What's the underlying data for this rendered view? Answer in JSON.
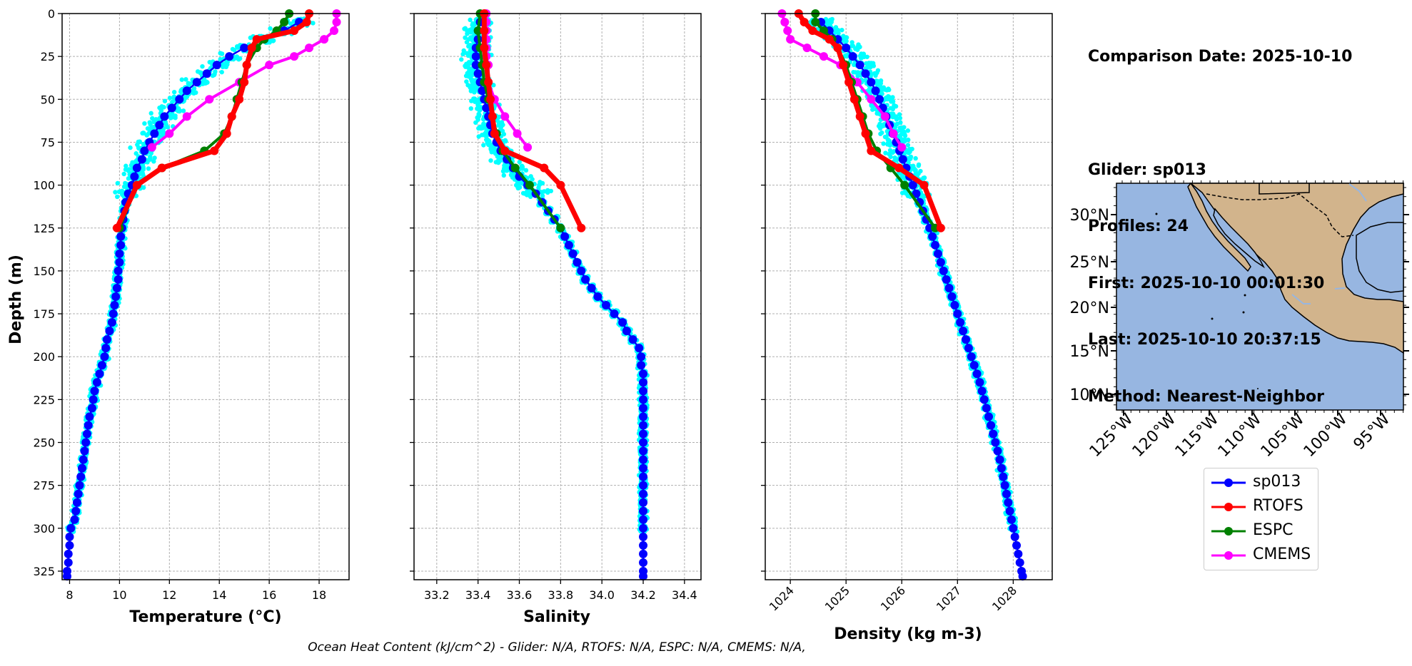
{
  "info": {
    "comparison_date": "Comparison Date: 2025-10-10",
    "glider": "Glider: sp013",
    "profiles": "Profiles: 24",
    "first": "First: 2025-10-10 00:01:30",
    "last": "Last: 2025-10-10 20:37:15",
    "method": "Method: Nearest-Neighbor"
  },
  "footer": "Ocean Heat Content (kJ/cm^2) - Glider: N/A,  RTOFS: N/A,  ESPC: N/A,  CMEMS: N/A,",
  "colors": {
    "sp013": "#0000ff",
    "RTOFS": "#ff0000",
    "ESPC": "#008000",
    "CMEMS": "#ff00ff",
    "profiles": "#00ffff",
    "ocean": "#97b6e1",
    "land": "#d2b48c"
  },
  "legend": [
    {
      "name": "sp013",
      "color": "#0000ff"
    },
    {
      "name": "RTOFS",
      "color": "#ff0000"
    },
    {
      "name": "ESPC",
      "color": "#008000"
    },
    {
      "name": "CMEMS",
      "color": "#ff00ff"
    }
  ],
  "map": {
    "lat_labels": [
      "30°N",
      "25°N",
      "20°N",
      "15°N",
      "10°N"
    ],
    "lon_labels": [
      "125°W",
      "120°W",
      "115°W",
      "110°W",
      "105°W",
      "100°W",
      "95°W"
    ]
  },
  "chart_data": [
    {
      "type": "line",
      "xlabel": "Temperature (°C)",
      "ylabel": "Depth (m)",
      "xlim": [
        7.7,
        19.2
      ],
      "ylim": [
        330,
        0
      ],
      "xticks": [
        8,
        10,
        12,
        14,
        16,
        18
      ],
      "xtick_labels": [
        "8",
        "10",
        "12",
        "14",
        "16",
        "18"
      ],
      "yticks": [
        0,
        25,
        50,
        75,
        100,
        125,
        150,
        175,
        200,
        225,
        250,
        275,
        300,
        325
      ],
      "grid": true,
      "series": [
        {
          "name": "sp013",
          "depth": [
            5,
            10,
            15,
            20,
            25,
            30,
            35,
            40,
            45,
            50,
            55,
            60,
            65,
            70,
            75,
            80,
            85,
            90,
            95,
            100,
            105,
            110,
            115,
            120,
            125,
            130,
            135,
            140,
            145,
            150,
            155,
            160,
            165,
            170,
            175,
            180,
            185,
            190,
            195,
            200,
            205,
            210,
            215,
            220,
            225,
            230,
            235,
            240,
            245,
            250,
            255,
            260,
            265,
            270,
            275,
            280,
            285,
            290,
            295,
            300,
            305,
            310,
            315,
            320,
            325,
            328
          ],
          "values": [
            17.2,
            16.6,
            15.8,
            15.0,
            14.4,
            13.9,
            13.5,
            13.1,
            12.7,
            12.4,
            12.1,
            11.8,
            11.6,
            11.4,
            11.2,
            11.0,
            10.9,
            10.7,
            10.6,
            10.5,
            10.35,
            10.25,
            10.2,
            10.15,
            10.1,
            10.05,
            10.05,
            10.0,
            10.0,
            9.95,
            9.95,
            9.9,
            9.85,
            9.8,
            9.75,
            9.7,
            9.6,
            9.5,
            9.45,
            9.4,
            9.3,
            9.2,
            9.1,
            9.0,
            8.95,
            8.9,
            8.8,
            8.75,
            8.7,
            8.65,
            8.6,
            8.55,
            8.5,
            8.45,
            8.4,
            8.35,
            8.3,
            8.25,
            8.2,
            8.05,
            8.0,
            8.0,
            7.95,
            7.95,
            7.9,
            7.9
          ]
        },
        {
          "name": "RTOFS",
          "depth": [
            0,
            5,
            10,
            15,
            20,
            30,
            40,
            50,
            60,
            70,
            80,
            90,
            100,
            125
          ],
          "values": [
            17.6,
            17.5,
            17.0,
            15.5,
            15.3,
            15.1,
            15.0,
            14.8,
            14.5,
            14.3,
            13.8,
            11.7,
            10.7,
            9.9
          ]
        },
        {
          "name": "ESPC",
          "depth": [
            0,
            5,
            10,
            15,
            20,
            30,
            40,
            50,
            60,
            70,
            80,
            90,
            100,
            125
          ],
          "values": [
            16.8,
            16.6,
            16.3,
            15.8,
            15.5,
            15.1,
            14.9,
            14.7,
            14.5,
            14.2,
            13.4,
            11.7,
            10.7,
            10.0
          ]
        },
        {
          "name": "CMEMS",
          "depth": [
            0,
            5,
            10,
            15,
            20,
            25,
            30,
            40,
            50,
            60,
            70,
            78
          ],
          "values": [
            18.7,
            18.7,
            18.6,
            18.2,
            17.6,
            17.0,
            16.0,
            14.8,
            13.6,
            12.7,
            12.0,
            11.3
          ]
        }
      ]
    },
    {
      "type": "line",
      "xlabel": "Salinity",
      "xlim": [
        33.09,
        34.48
      ],
      "ylim": [
        330,
        0
      ],
      "xticks": [
        33.2,
        33.4,
        33.6,
        33.8,
        34.0,
        34.2,
        34.4
      ],
      "xtick_labels": [
        "33.2",
        "33.4",
        "33.6",
        "33.8",
        "34.0",
        "34.2",
        "34.4"
      ],
      "grid": true,
      "series": [
        {
          "name": "sp013",
          "depth": [
            5,
            10,
            15,
            20,
            25,
            30,
            35,
            40,
            45,
            50,
            55,
            60,
            65,
            70,
            75,
            80,
            85,
            90,
            95,
            100,
            105,
            110,
            115,
            120,
            125,
            130,
            135,
            140,
            145,
            150,
            155,
            160,
            165,
            170,
            175,
            180,
            185,
            190,
            195,
            200,
            205,
            210,
            215,
            220,
            225,
            230,
            235,
            240,
            245,
            250,
            255,
            260,
            265,
            270,
            275,
            280,
            285,
            290,
            295,
            300,
            305,
            310,
            315,
            320,
            325,
            328
          ],
          "values": [
            33.41,
            33.4,
            33.4,
            33.39,
            33.39,
            33.39,
            33.4,
            33.41,
            33.42,
            33.43,
            33.44,
            33.45,
            33.46,
            33.47,
            33.49,
            33.51,
            33.54,
            33.57,
            33.6,
            33.64,
            33.68,
            33.71,
            33.74,
            33.77,
            33.8,
            33.82,
            33.84,
            33.86,
            33.88,
            33.9,
            33.92,
            33.95,
            33.98,
            34.02,
            34.06,
            34.1,
            34.12,
            34.15,
            34.18,
            34.19,
            34.19,
            34.2,
            34.2,
            34.2,
            34.2,
            34.2,
            34.2,
            34.2,
            34.2,
            34.2,
            34.2,
            34.2,
            34.2,
            34.2,
            34.2,
            34.2,
            34.2,
            34.2,
            34.2,
            34.2,
            34.2,
            34.2,
            34.2,
            34.2,
            34.2,
            34.2
          ]
        },
        {
          "name": "RTOFS",
          "depth": [
            0,
            10,
            20,
            30,
            40,
            50,
            60,
            70,
            80,
            90,
            100,
            125
          ],
          "values": [
            33.43,
            33.43,
            33.43,
            33.44,
            33.45,
            33.46,
            33.47,
            33.48,
            33.53,
            33.72,
            33.8,
            33.9
          ]
        },
        {
          "name": "ESPC",
          "depth": [
            0,
            10,
            20,
            30,
            40,
            50,
            60,
            70,
            80,
            90,
            100,
            125
          ],
          "values": [
            33.41,
            33.4,
            33.41,
            33.42,
            33.43,
            33.45,
            33.47,
            33.49,
            33.52,
            33.58,
            33.65,
            33.8
          ]
        },
        {
          "name": "CMEMS",
          "depth": [
            0,
            5,
            10,
            15,
            20,
            25,
            30,
            40,
            50,
            60,
            70,
            78
          ],
          "values": [
            33.44,
            33.44,
            33.44,
            33.44,
            33.44,
            33.44,
            33.45,
            33.45,
            33.48,
            33.53,
            33.59,
            33.64
          ]
        }
      ]
    },
    {
      "type": "line",
      "xlabel": "Density (kg m-3)",
      "xlim": [
        1023.55,
        1028.7
      ],
      "ylim": [
        330,
        0
      ],
      "xticks": [
        1024,
        1025,
        1026,
        1027,
        1028
      ],
      "xtick_labels": [
        "1024",
        "1025",
        "1026",
        "1027",
        "1028"
      ],
      "grid": true,
      "series": [
        {
          "name": "sp013",
          "depth": [
            5,
            10,
            15,
            20,
            25,
            30,
            35,
            40,
            45,
            50,
            55,
            60,
            65,
            70,
            75,
            80,
            85,
            90,
            95,
            100,
            105,
            110,
            115,
            120,
            125,
            130,
            135,
            140,
            145,
            150,
            155,
            160,
            165,
            170,
            175,
            180,
            185,
            190,
            195,
            200,
            205,
            210,
            215,
            220,
            225,
            230,
            235,
            240,
            245,
            250,
            255,
            260,
            265,
            270,
            275,
            280,
            285,
            290,
            295,
            300,
            305,
            310,
            315,
            320,
            325,
            328
          ],
          "values": [
            1024.55,
            1024.7,
            1024.85,
            1025.0,
            1025.12,
            1025.25,
            1025.35,
            1025.45,
            1025.53,
            1025.6,
            1025.66,
            1025.72,
            1025.78,
            1025.84,
            1025.9,
            1025.96,
            1026.02,
            1026.08,
            1026.14,
            1026.2,
            1026.26,
            1026.32,
            1026.38,
            1026.44,
            1026.5,
            1026.55,
            1026.6,
            1026.65,
            1026.7,
            1026.75,
            1026.8,
            1026.85,
            1026.9,
            1026.95,
            1027.0,
            1027.05,
            1027.1,
            1027.15,
            1027.2,
            1027.25,
            1027.3,
            1027.35,
            1027.4,
            1027.44,
            1027.48,
            1027.52,
            1027.56,
            1027.6,
            1027.64,
            1027.68,
            1027.72,
            1027.76,
            1027.79,
            1027.82,
            1027.85,
            1027.88,
            1027.91,
            1027.94,
            1027.97,
            1028.0,
            1028.03,
            1028.06,
            1028.09,
            1028.12,
            1028.15,
            1028.17
          ]
        },
        {
          "name": "RTOFS",
          "depth": [
            0,
            5,
            10,
            15,
            20,
            30,
            40,
            50,
            60,
            70,
            80,
            90,
            100,
            125
          ],
          "values": [
            1024.15,
            1024.25,
            1024.4,
            1024.7,
            1024.85,
            1024.95,
            1025.05,
            1025.15,
            1025.25,
            1025.35,
            1025.45,
            1025.95,
            1026.4,
            1026.7
          ]
        },
        {
          "name": "ESPC",
          "depth": [
            0,
            5,
            10,
            15,
            20,
            30,
            40,
            50,
            60,
            70,
            80,
            90,
            100,
            125
          ],
          "values": [
            1024.45,
            1024.45,
            1024.6,
            1024.75,
            1024.85,
            1025.0,
            1025.1,
            1025.2,
            1025.3,
            1025.4,
            1025.55,
            1025.8,
            1026.05,
            1026.6
          ]
        },
        {
          "name": "CMEMS",
          "depth": [
            0,
            5,
            10,
            15,
            20,
            25,
            30,
            40,
            50,
            60,
            70,
            78
          ],
          "values": [
            1023.85,
            1023.9,
            1023.95,
            1024.0,
            1024.3,
            1024.6,
            1024.9,
            1025.2,
            1025.45,
            1025.7,
            1025.85,
            1026.0
          ]
        }
      ]
    }
  ]
}
